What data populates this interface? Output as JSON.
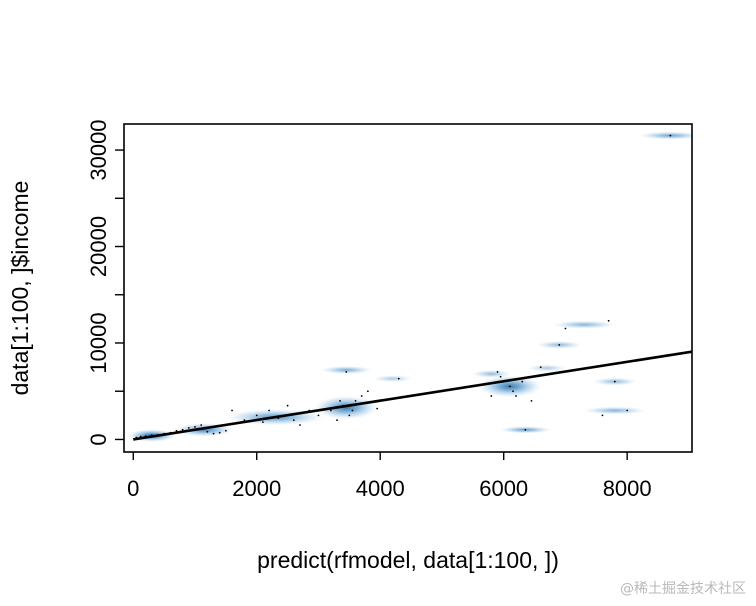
{
  "chart_data": {
    "type": "scatter",
    "title": "",
    "xlabel": "predict(rfmodel, data[1:100, ])",
    "ylabel": "data[1:100, ]$income",
    "xlim": [
      -150,
      9050
    ],
    "ylim": [
      -1300,
      32700
    ],
    "xticks": [
      0,
      2000,
      4000,
      6000,
      8000
    ],
    "xtick_labels": [
      "0",
      "2000",
      "4000",
      "6000",
      "8000"
    ],
    "yticks": [
      0,
      10000,
      20000,
      30000
    ],
    "ytick_labels": [
      "0",
      "10000",
      "20000",
      "30000"
    ],
    "yminor_ticks": [
      5000,
      15000,
      25000
    ],
    "grid": false,
    "density_style": "smoothScatter",
    "colors": {
      "density": "#2f7ec0",
      "points": "#000000",
      "line": "#000000"
    },
    "regression_line": {
      "x": [
        0,
        9050
      ],
      "y": [
        0,
        9100
      ]
    },
    "points": [
      {
        "x": 50,
        "y": 200
      },
      {
        "x": 120,
        "y": 300
      },
      {
        "x": 200,
        "y": 350
      },
      {
        "x": 300,
        "y": 450
      },
      {
        "x": 400,
        "y": 500
      },
      {
        "x": 500,
        "y": 600
      },
      {
        "x": 600,
        "y": 700
      },
      {
        "x": 700,
        "y": 900
      },
      {
        "x": 800,
        "y": 1000
      },
      {
        "x": 900,
        "y": 1200
      },
      {
        "x": 1000,
        "y": 1300
      },
      {
        "x": 1100,
        "y": 1500
      },
      {
        "x": 1200,
        "y": 800
      },
      {
        "x": 1300,
        "y": 600
      },
      {
        "x": 1400,
        "y": 700
      },
      {
        "x": 1500,
        "y": 900
      },
      {
        "x": 1600,
        "y": 3000
      },
      {
        "x": 1800,
        "y": 2000
      },
      {
        "x": 2000,
        "y": 2500
      },
      {
        "x": 2100,
        "y": 1800
      },
      {
        "x": 2200,
        "y": 3000
      },
      {
        "x": 2350,
        "y": 2200
      },
      {
        "x": 2500,
        "y": 3500
      },
      {
        "x": 2600,
        "y": 2000
      },
      {
        "x": 2700,
        "y": 1500
      },
      {
        "x": 2850,
        "y": 3000
      },
      {
        "x": 3000,
        "y": 2500
      },
      {
        "x": 3200,
        "y": 3000
      },
      {
        "x": 3300,
        "y": 2000
      },
      {
        "x": 3350,
        "y": 4000
      },
      {
        "x": 3400,
        "y": 3500
      },
      {
        "x": 3450,
        "y": 7000
      },
      {
        "x": 3500,
        "y": 2500
      },
      {
        "x": 3550,
        "y": 3000
      },
      {
        "x": 3600,
        "y": 4000
      },
      {
        "x": 3700,
        "y": 4500
      },
      {
        "x": 3800,
        "y": 5000
      },
      {
        "x": 3950,
        "y": 3200
      },
      {
        "x": 4300,
        "y": 6300
      },
      {
        "x": 5800,
        "y": 4500
      },
      {
        "x": 5900,
        "y": 7000
      },
      {
        "x": 5950,
        "y": 6500
      },
      {
        "x": 6100,
        "y": 5500
      },
      {
        "x": 6150,
        "y": 5000
      },
      {
        "x": 6200,
        "y": 4500
      },
      {
        "x": 6300,
        "y": 6000
      },
      {
        "x": 6350,
        "y": 1000
      },
      {
        "x": 6450,
        "y": 4000
      },
      {
        "x": 6600,
        "y": 7500
      },
      {
        "x": 6900,
        "y": 9800
      },
      {
        "x": 7000,
        "y": 11500
      },
      {
        "x": 7600,
        "y": 2500
      },
      {
        "x": 7700,
        "y": 12300
      },
      {
        "x": 7800,
        "y": 6000
      },
      {
        "x": 8000,
        "y": 3000
      },
      {
        "x": 8700,
        "y": 31500
      }
    ],
    "density_blobs": [
      {
        "x": 300,
        "y": 400,
        "sx": 420,
        "sy": 700,
        "a": 0.95
      },
      {
        "x": 1150,
        "y": 1000,
        "sx": 500,
        "sy": 750,
        "a": 0.8
      },
      {
        "x": 2300,
        "y": 2300,
        "sx": 850,
        "sy": 900,
        "a": 0.7
      },
      {
        "x": 3450,
        "y": 3300,
        "sx": 550,
        "sy": 1300,
        "a": 0.85
      },
      {
        "x": 3450,
        "y": 7200,
        "sx": 450,
        "sy": 450,
        "a": 0.55
      },
      {
        "x": 4200,
        "y": 6300,
        "sx": 350,
        "sy": 400,
        "a": 0.35
      },
      {
        "x": 6100,
        "y": 5500,
        "sx": 550,
        "sy": 1200,
        "a": 0.85
      },
      {
        "x": 5800,
        "y": 6800,
        "sx": 350,
        "sy": 450,
        "a": 0.45
      },
      {
        "x": 6350,
        "y": 1000,
        "sx": 450,
        "sy": 400,
        "a": 0.65
      },
      {
        "x": 6900,
        "y": 9800,
        "sx": 400,
        "sy": 450,
        "a": 0.45
      },
      {
        "x": 7300,
        "y": 11900,
        "sx": 550,
        "sy": 450,
        "a": 0.5
      },
      {
        "x": 6700,
        "y": 7400,
        "sx": 350,
        "sy": 400,
        "a": 0.35
      },
      {
        "x": 7800,
        "y": 6000,
        "sx": 400,
        "sy": 450,
        "a": 0.45
      },
      {
        "x": 7800,
        "y": 3000,
        "sx": 550,
        "sy": 450,
        "a": 0.5
      },
      {
        "x": 8700,
        "y": 31500,
        "sx": 550,
        "sy": 450,
        "a": 0.6
      }
    ]
  },
  "watermark": "@稀土掘金技术社区"
}
